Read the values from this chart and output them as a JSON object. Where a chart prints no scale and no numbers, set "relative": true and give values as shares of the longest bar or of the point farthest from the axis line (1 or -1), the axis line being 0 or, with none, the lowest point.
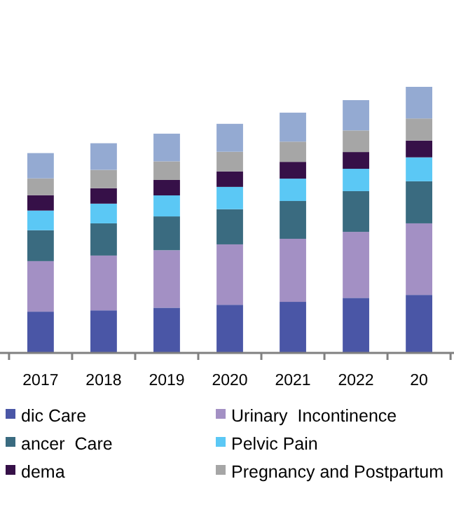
{
  "chart_data": {
    "type": "bar",
    "stacked": true,
    "relative": true,
    "legend": "bottom",
    "categories": [
      "2017",
      "2018",
      "2019",
      "2020",
      "2021",
      "2022",
      "20"
    ],
    "series": [
      {
        "name": "dic Care",
        "color": "#4a56a6",
        "values": [
          0.155,
          0.16,
          0.17,
          0.181,
          0.192,
          0.207,
          0.218
        ]
      },
      {
        "name": "Urinary  Incontinence",
        "color": "#a390c4",
        "values": [
          0.19,
          0.206,
          0.216,
          0.227,
          0.237,
          0.248,
          0.269
        ]
      },
      {
        "name": "ancer  Care",
        "color": "#3a6b80",
        "values": [
          0.116,
          0.121,
          0.127,
          0.132,
          0.142,
          0.153,
          0.158
        ]
      },
      {
        "name": "Pelvic Pain",
        "color": "#5bc8f5",
        "values": [
          0.074,
          0.074,
          0.079,
          0.084,
          0.084,
          0.084,
          0.09
        ]
      },
      {
        "name": "dema",
        "color": "#361048",
        "values": [
          0.058,
          0.058,
          0.058,
          0.058,
          0.063,
          0.063,
          0.063
        ]
      },
      {
        "name": "Pregnancy and Postpartum",
        "color": "#a6a6a6",
        "values": [
          0.063,
          0.069,
          0.07,
          0.074,
          0.076,
          0.081,
          0.083
        ]
      },
      {
        "color": "#94aad2",
        "values": [
          0.095,
          0.1,
          0.104,
          0.105,
          0.109,
          0.114,
          0.119
        ]
      }
    ]
  }
}
